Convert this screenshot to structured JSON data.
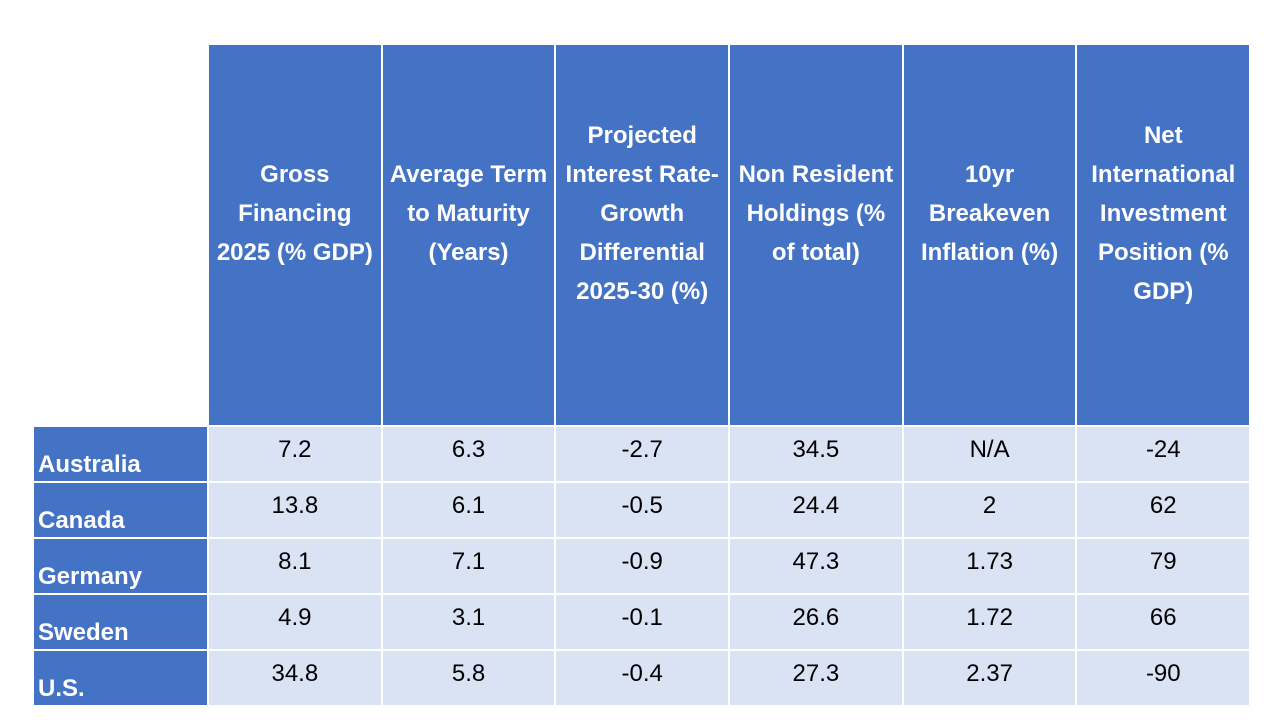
{
  "table": {
    "headers": [
      "",
      "Gross Financing 2025 (% GDP)",
      "Average Term to Maturity (Years)",
      "Projected Interest Rate-Growth Differential 2025-30 (%)",
      "Non Resident Holdings (% of total)",
      "10yr Breakeven Inflation (%)",
      "Net International Investment Position (% GDP)"
    ],
    "rows": [
      [
        "Australia",
        "7.2",
        "6.3",
        "-2.7",
        "34.5",
        "N/A",
        "-24"
      ],
      [
        "Canada",
        "13.8",
        "6.1",
        "-0.5",
        "24.4",
        "2",
        "62"
      ],
      [
        "Germany",
        "8.1",
        "7.1",
        "-0.9",
        "47.3",
        "1.73",
        "79"
      ],
      [
        "Sweden",
        "4.9",
        "3.1",
        "-0.1",
        "26.6",
        "1.72",
        "66"
      ],
      [
        "U.S.",
        "34.8",
        "5.8",
        "-0.4",
        "27.3",
        "2.37",
        "-90"
      ]
    ]
  },
  "colors": {
    "header_bg": "#4472c4",
    "header_text": "#ffffff",
    "cell_bg": "#dae3f3",
    "cell_text": "#000000",
    "grid": "#ffffff"
  }
}
